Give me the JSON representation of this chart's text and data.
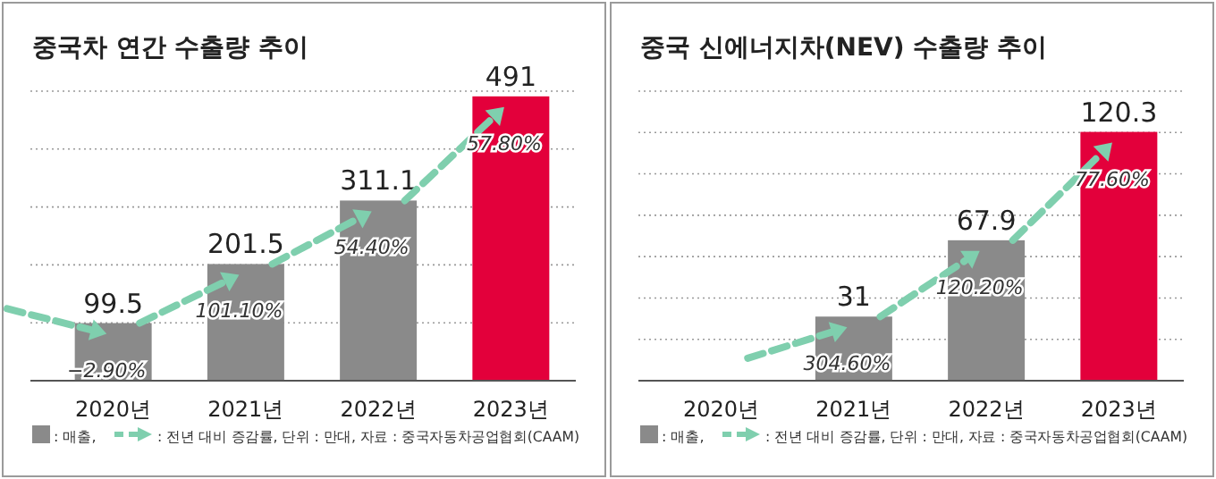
{
  "chart_data": [
    {
      "type": "bar",
      "title": "중국차 연간 수출량 추이",
      "categories": [
        "2020년",
        "2021년",
        "2022년",
        "2023년"
      ],
      "colors": [
        "#8a8a8a",
        "#8a8a8a",
        "#8a8a8a",
        "#e3003b"
      ],
      "values": [
        99.5,
        201.5,
        311.1,
        491
      ],
      "ylim": [
        0,
        500
      ],
      "yticks": [
        {
          "value": 100,
          "label": null
        },
        {
          "value": 200,
          "label": null
        },
        {
          "value": 300,
          "label": null
        },
        {
          "value": 400,
          "label": null
        },
        {
          "value": 500,
          "label": null
        }
      ],
      "grid": "y",
      "data_labels": true,
      "annotations": [
        "−2.90%",
        "101.10%",
        "54.40%",
        "57.80%",
        ": 매출,",
        ": 전년 대비 증감률, 단위 : 만대, 자료 : 중국자동차공업협회(CAAM)"
      ]
    },
    {
      "type": "bar",
      "title": "중국 신에너지차(NEV) 수출량 추이",
      "categories": [
        "2020년",
        "2021년",
        "2022년",
        "2023년"
      ],
      "colors": [
        "#8a8a8a",
        "#8a8a8a",
        "#8a8a8a",
        "#e3003b"
      ],
      "values": [
        null,
        31,
        67.9,
        120.3
      ],
      "ylim": [
        0,
        140
      ],
      "yticks": [
        {
          "value": 20,
          "label": null
        },
        {
          "value": 40,
          "label": null
        },
        {
          "value": 60,
          "label": null
        },
        {
          "value": 80,
          "label": null
        },
        {
          "value": 100,
          "label": null
        },
        {
          "value": 120,
          "label": null
        },
        {
          "value": 140,
          "label": null
        }
      ],
      "grid": "y",
      "data_labels": true,
      "annotations": [
        "304.60%",
        "120.20%",
        "77.60%",
        ": 매출,",
        ": 전년 대비 증감률, 단위 : 만대, 자료 : 중국자동차공업협회(CAAM)"
      ]
    }
  ]
}
